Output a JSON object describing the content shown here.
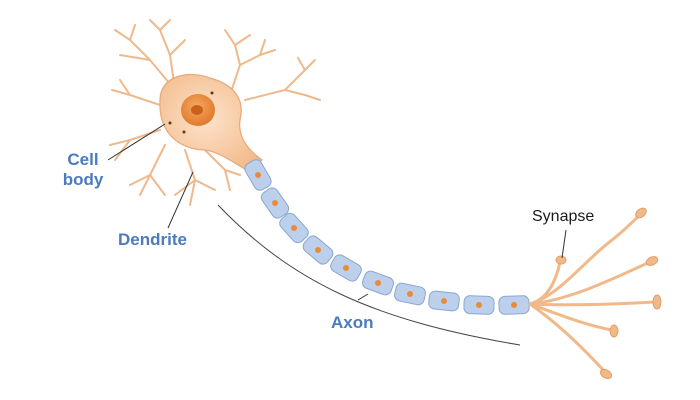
{
  "figure": {
    "subject": "Neuron anatomy",
    "labels": {
      "cell_body_line1": "Cell",
      "cell_body_line2": "body",
      "dendrite": "Dendrite",
      "axon": "Axon",
      "synapse": "Synapse"
    },
    "colors": {
      "label_blue": "#4a7bc0",
      "label_black": "#1a1a1a",
      "soma_fill": "#f6c9a0",
      "soma_light": "#fde3cb",
      "nucleus": "#e8883a",
      "nucleolus": "#c9601c",
      "myelin": "#bcd0ec",
      "myelin_edge": "#8aa6d2",
      "node_dot": "#e98b3a",
      "leader_line": "#333333"
    }
  }
}
